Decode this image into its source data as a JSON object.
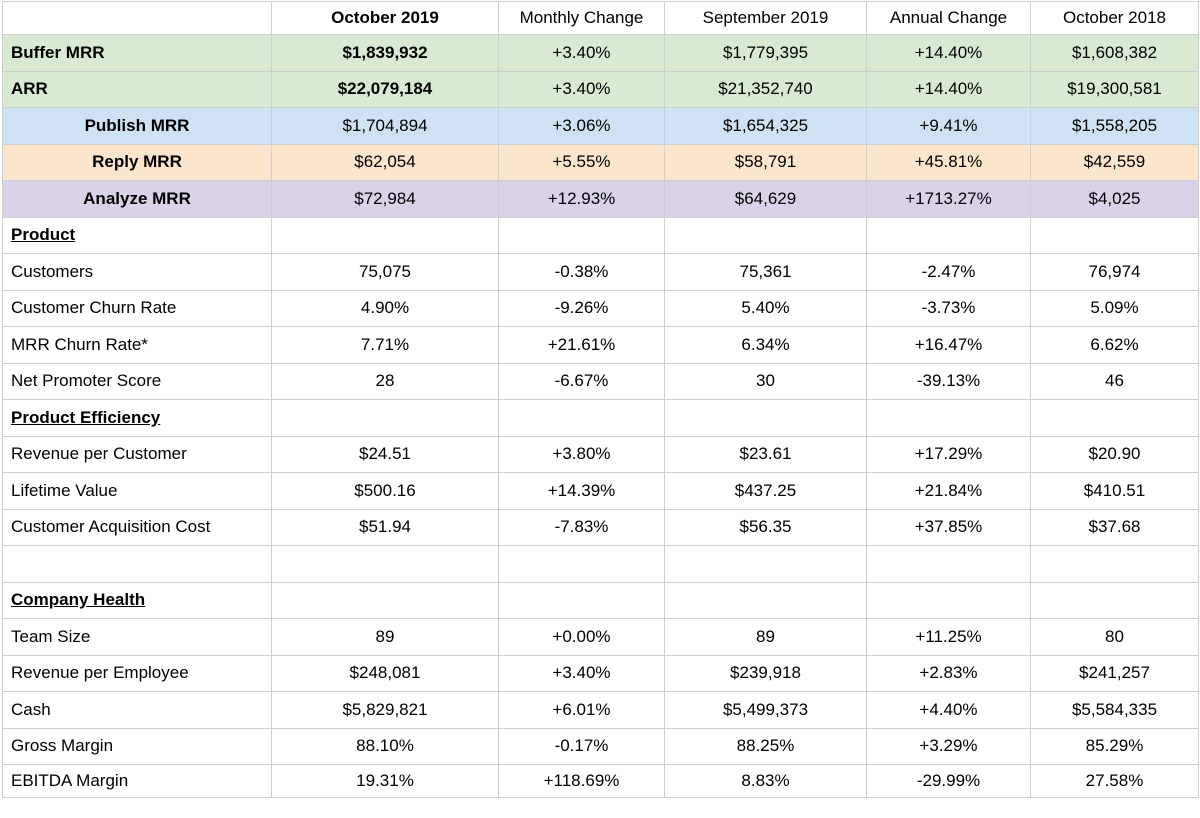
{
  "header": [
    "",
    "October 2019",
    "Monthly Change",
    "September 2019",
    "Annual Change",
    "October 2018"
  ],
  "rows": {
    "buffer_mrr": [
      "Buffer MRR",
      "$1,839,932",
      "+3.40%",
      "$1,779,395",
      "+14.40%",
      "$1,608,382"
    ],
    "arr": [
      "ARR",
      "$22,079,184",
      "+3.40%",
      "$21,352,740",
      "+14.40%",
      "$19,300,581"
    ],
    "publish_mrr": [
      "Publish MRR",
      "$1,704,894",
      "+3.06%",
      "$1,654,325",
      "+9.41%",
      "$1,558,205"
    ],
    "reply_mrr": [
      "Reply MRR",
      "$62,054",
      "+5.55%",
      "$58,791",
      "+45.81%",
      "$42,559"
    ],
    "analyze_mrr": [
      "Analyze MRR",
      "$72,984",
      "+12.93%",
      "$64,629",
      "+1713.27%",
      "$4,025"
    ],
    "product_section": "Product",
    "customers": [
      "Customers",
      "75,075",
      "-0.38%",
      "75,361",
      "-2.47%",
      "76,974"
    ],
    "customer_churn": [
      "Customer Churn Rate",
      "4.90%",
      "-9.26%",
      "5.40%",
      "-3.73%",
      "5.09%"
    ],
    "mrr_churn": [
      "MRR Churn Rate*",
      "7.71%",
      "+21.61%",
      "6.34%",
      "+16.47%",
      "6.62%"
    ],
    "nps": [
      "Net Promoter Score",
      "28",
      "-6.67%",
      "30",
      "-39.13%",
      "46"
    ],
    "efficiency_section": "Product Efficiency",
    "rev_per_customer": [
      "Revenue per Customer",
      "$24.51",
      "+3.80%",
      "$23.61",
      "+17.29%",
      "$20.90"
    ],
    "ltv": [
      "Lifetime Value",
      "$500.16",
      "+14.39%",
      "$437.25",
      "+21.84%",
      "$410.51"
    ],
    "cac": [
      "Customer Acquisition Cost",
      "$51.94",
      "-7.83%",
      "$56.35",
      "+37.85%",
      "$37.68"
    ],
    "health_section": "Company Health",
    "team_size": [
      "Team Size",
      "89",
      "+0.00%",
      "89",
      "+11.25%",
      "80"
    ],
    "rev_per_employee": [
      "Revenue per Employee",
      "$248,081",
      "+3.40%",
      "$239,918",
      "+2.83%",
      "$241,257"
    ],
    "cash": [
      "Cash",
      "$5,829,821",
      "+6.01%",
      "$5,499,373",
      "+4.40%",
      "$5,584,335"
    ],
    "gross_margin": [
      "Gross Margin",
      "88.10%",
      "-0.17%",
      "88.25%",
      "+3.29%",
      "85.29%"
    ],
    "ebitda_margin": [
      "EBITDA Margin",
      "19.31%",
      "+118.69%",
      "8.83%",
      "-29.99%",
      "27.58%"
    ]
  },
  "colors": {
    "green_row": "#d9ead3",
    "blue_row": "#cfe2f3",
    "orange_row": "#fce5cd",
    "purple_row": "#d9d2e9",
    "grid_line": "#cfcfcf"
  }
}
